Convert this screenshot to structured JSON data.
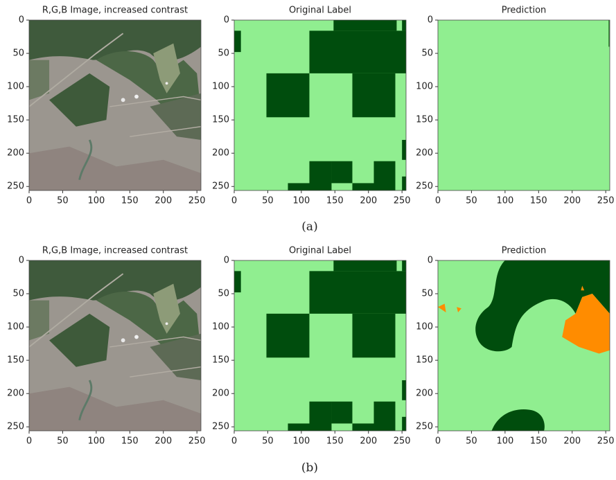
{
  "captions": [
    "(a)",
    "(b)"
  ],
  "chart_data": [
    {
      "type": "image",
      "title": "R,G,B Image, increased contrast",
      "xlim": [
        0,
        256
      ],
      "ylim": [
        256,
        0
      ],
      "xticks": [
        0,
        50,
        100,
        150,
        200,
        250
      ],
      "yticks": [
        0,
        50,
        100,
        150,
        200,
        250
      ]
    },
    {
      "type": "image",
      "title": "Original Label",
      "xlim": [
        0,
        256
      ],
      "ylim": [
        256,
        0
      ],
      "xticks": [
        0,
        50,
        100,
        150,
        200,
        250
      ],
      "yticks": [
        0,
        50,
        100,
        150,
        200,
        250
      ]
    },
    {
      "type": "image",
      "title": "Prediction",
      "xlim": [
        0,
        256
      ],
      "ylim": [
        256,
        0
      ],
      "xticks": [
        0,
        50,
        100,
        150,
        200,
        250
      ],
      "yticks": [
        0,
        50,
        100,
        150,
        200,
        250
      ]
    },
    {
      "type": "image",
      "title": "R,G,B Image, increased contrast",
      "xlim": [
        0,
        256
      ],
      "ylim": [
        256,
        0
      ],
      "xticks": [
        0,
        50,
        100,
        150,
        200,
        250
      ],
      "yticks": [
        0,
        50,
        100,
        150,
        200,
        250
      ]
    },
    {
      "type": "image",
      "title": "Original Label",
      "xlim": [
        0,
        256
      ],
      "ylim": [
        256,
        0
      ],
      "xticks": [
        0,
        50,
        100,
        150,
        200,
        250
      ],
      "yticks": [
        0,
        50,
        100,
        150,
        200,
        250
      ]
    },
    {
      "type": "image",
      "title": "Prediction",
      "xlim": [
        0,
        256
      ],
      "ylim": [
        256,
        0
      ],
      "xticks": [
        0,
        50,
        100,
        150,
        200,
        250
      ],
      "yticks": [
        0,
        50,
        100,
        150,
        200,
        250
      ]
    }
  ]
}
